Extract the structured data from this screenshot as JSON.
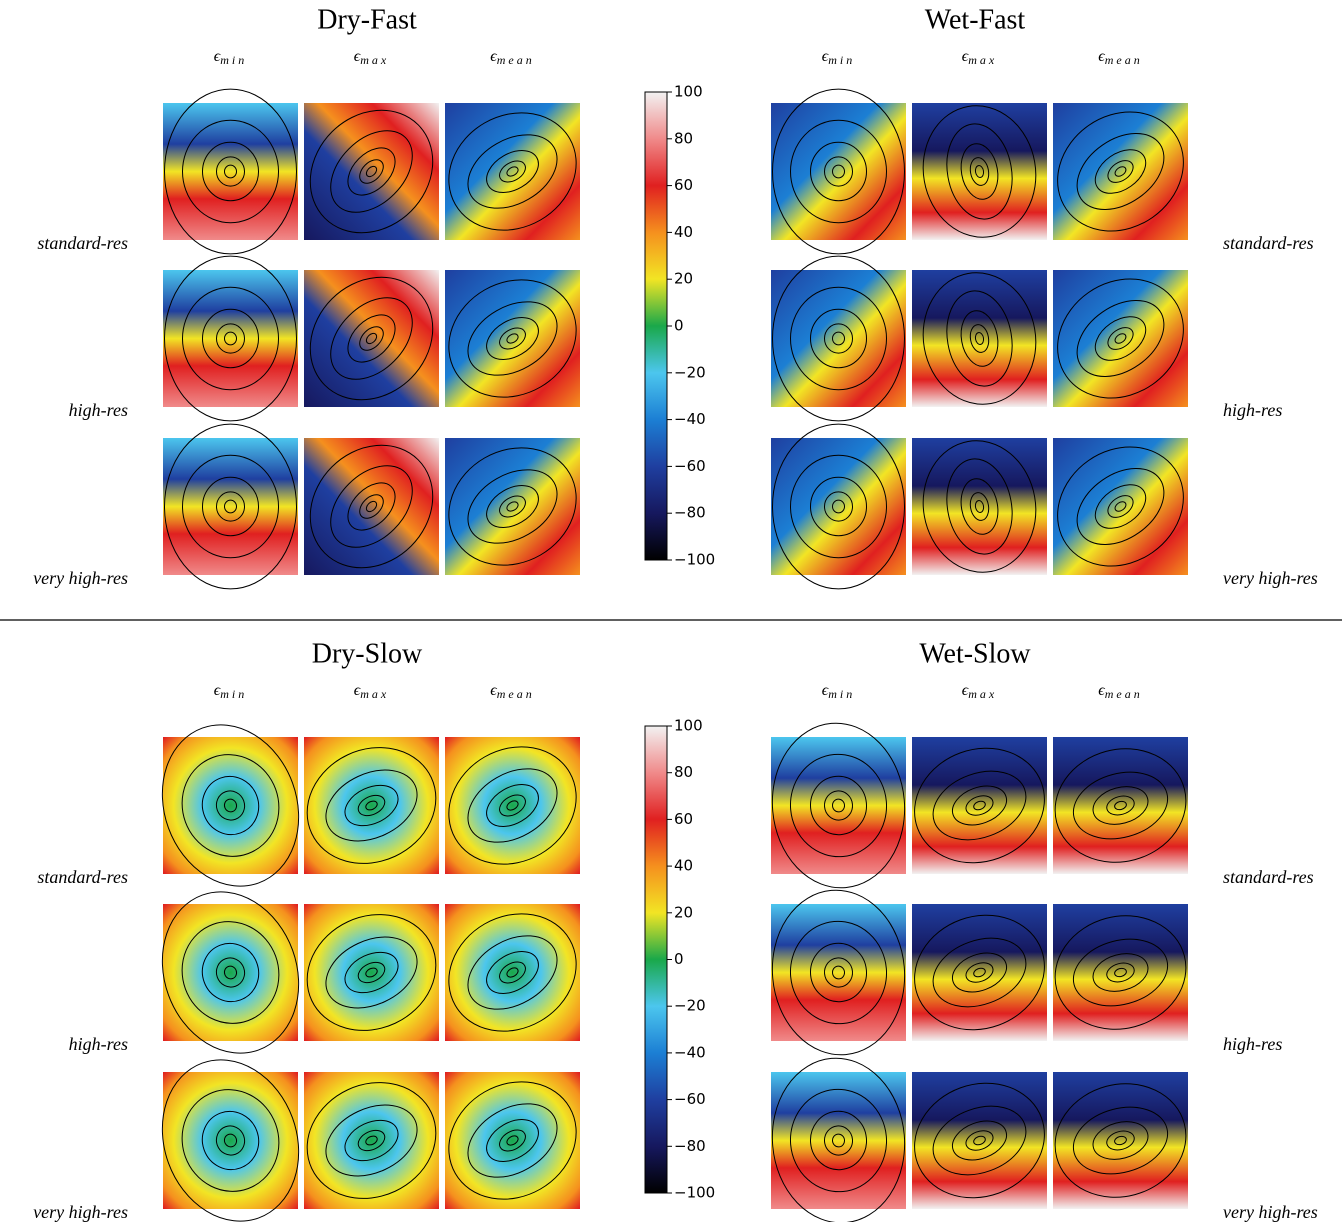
{
  "groups": [
    {
      "title": "Dry-Fast",
      "symbol": "ϵ",
      "columns": [
        "min",
        "max",
        "mean"
      ],
      "rows": [
        "standard-res",
        "high-res",
        "very high-res"
      ]
    },
    {
      "title": "Wet-Fast",
      "symbol": "ϵ",
      "columns": [
        "min",
        "max",
        "mean"
      ],
      "rows": [
        "standard-res",
        "high-res",
        "very high-res"
      ]
    },
    {
      "title": "Dry-Slow",
      "symbol": "ϵ",
      "columns": [
        "min",
        "max",
        "mean"
      ],
      "rows": [
        "standard-res",
        "high-res",
        "very high-res"
      ]
    },
    {
      "title": "Wet-Slow",
      "symbol": "ϵ",
      "columns": [
        "min",
        "max",
        "mean"
      ],
      "rows": [
        "standard-res",
        "high-res",
        "very high-res"
      ]
    }
  ],
  "colorbars": [
    {
      "ticks": [
        "100",
        "80",
        "60",
        "40",
        "20",
        "0",
        "−20",
        "−40",
        "−60",
        "−80",
        "−100"
      ]
    },
    {
      "ticks": [
        "100",
        "80",
        "60",
        "40",
        "20",
        "0",
        "−20",
        "−40",
        "−60",
        "−80",
        "−100"
      ]
    }
  ]
}
